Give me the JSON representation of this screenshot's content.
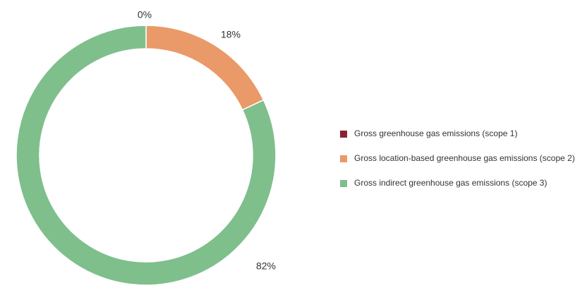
{
  "chart_data": {
    "type": "donut",
    "categories": [
      "Gross greenhouse gas emissions (scope 1)",
      "Gross location-based greenhouse gas emissions (scope 2)",
      "Gross indirect greenhouse gas emissions (scope 3)"
    ],
    "values": [
      0,
      18,
      82
    ],
    "value_labels": [
      "0%",
      "18%",
      "82%"
    ],
    "colors": [
      "#8b2232",
      "#e99a68",
      "#7fbf8c"
    ],
    "legend": "right"
  }
}
